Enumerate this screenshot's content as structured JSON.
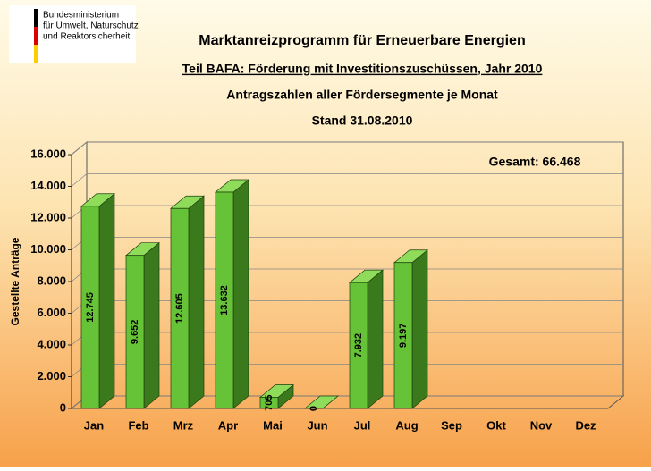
{
  "logo": {
    "lines": [
      "Bundesministerium",
      "für Umwelt, Naturschutz",
      "und Reaktorsicherheit"
    ]
  },
  "chart_data": {
    "type": "bar3d",
    "title": "Marktanreizprogramm für Erneuerbare Energien",
    "subtitles": [
      "Teil BAFA: Förderung mit Investitionszuschüssen, Jahr  2010",
      "Antragszahlen aller Fördersegmente je Monat",
      "Stand 31.08.2010"
    ],
    "y_label": "Gestellte Anträge",
    "annotation": "Gesamt: 66.468",
    "categories": [
      "Jan",
      "Feb",
      "Mrz",
      "Apr",
      "Mai",
      "Jun",
      "Jul",
      "Aug",
      "Sep",
      "Okt",
      "Nov",
      "Dez"
    ],
    "values": [
      12745,
      9652,
      12605,
      13632,
      705,
      0,
      7932,
      9197,
      null,
      null,
      null,
      null
    ],
    "value_labels": [
      "12.745",
      "9.652",
      "12.605",
      "13.632",
      "705",
      "0",
      "7.932",
      "9.197",
      null,
      null,
      null,
      null
    ],
    "color": "#66c236",
    "ylim": [
      0,
      16000
    ],
    "yticks": [
      0,
      {
        "value": 2000,
        "label": "2.000"
      },
      {
        "value": 4000,
        "label": "4.000"
      },
      {
        "value": 6000,
        "label": "6.000"
      },
      {
        "value": 8000,
        "label": "8.000"
      },
      {
        "value": 10000,
        "label": "10.000"
      },
      {
        "value": 12000,
        "label": "12.000"
      },
      {
        "value": 14000,
        "label": "14.000"
      },
      {
        "value": 16000,
        "label": "16.000"
      }
    ],
    "grid": true
  }
}
